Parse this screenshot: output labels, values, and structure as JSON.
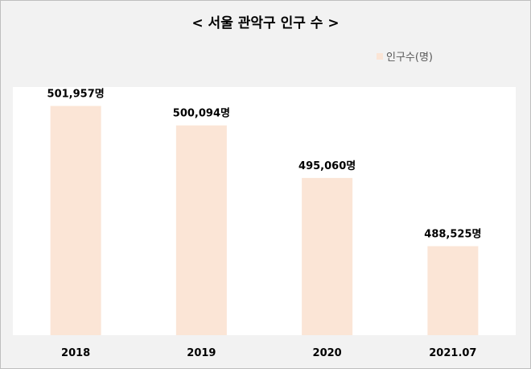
{
  "chart_data": {
    "type": "bar",
    "title": "< 서울 관악구 인구 수 >",
    "categories": [
      "2018",
      "2019",
      "2020",
      "2021.07"
    ],
    "series": [
      {
        "name": "인구수(명)",
        "values": [
          501957,
          500094,
          495060,
          488525
        ],
        "data_labels": [
          "501,957명",
          "500,094명",
          "495,060명",
          "488,525명"
        ]
      }
    ],
    "ylim": [
      480000,
      503000
    ],
    "grid": false,
    "legend_position": "top-right",
    "colors": {
      "bar": "#fbe5d6",
      "plot_bg": "#ffffff",
      "chart_bg": "#f2f2f2"
    }
  }
}
